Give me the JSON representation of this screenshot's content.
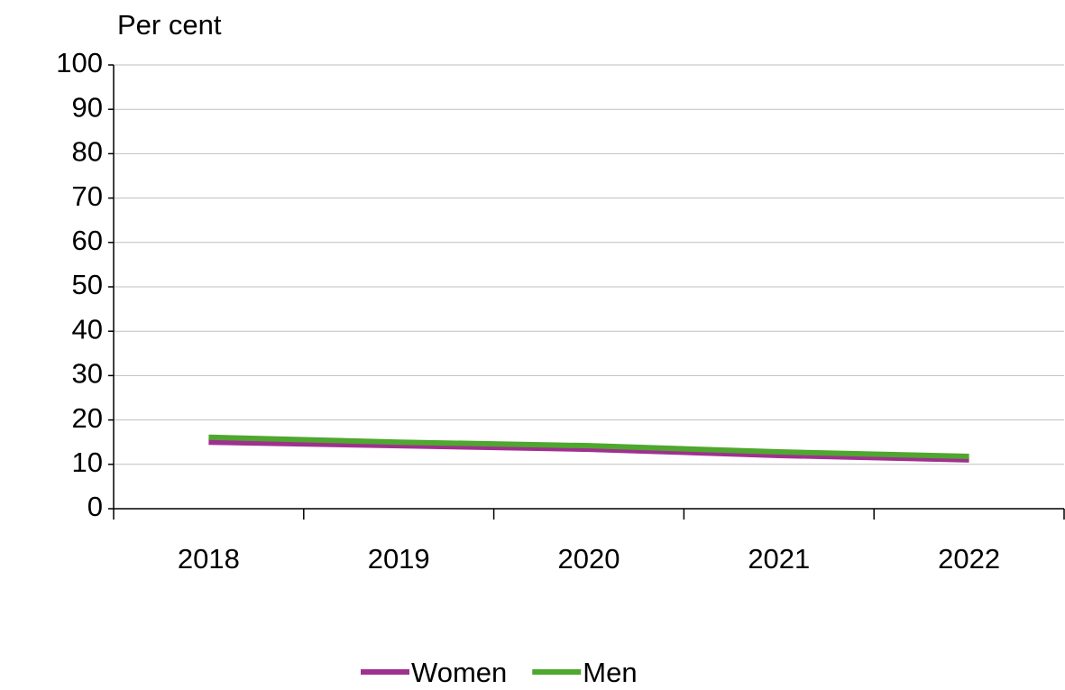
{
  "chart_data": {
    "type": "line",
    "y_axis_label": "Per cent",
    "categories": [
      "2018",
      "2019",
      "2020",
      "2021",
      "2022"
    ],
    "series": [
      {
        "name": "Women",
        "color": "#a0308f",
        "values": [
          15.0,
          14.2,
          13.4,
          12.0,
          11.0
        ]
      },
      {
        "name": "Men",
        "color": "#4ea72e",
        "values": [
          16.1,
          15.0,
          14.2,
          12.8,
          11.8
        ]
      }
    ],
    "ylim": [
      0,
      100
    ],
    "yticks": [
      0,
      10,
      20,
      30,
      40,
      50,
      60,
      70,
      80,
      90,
      100
    ],
    "grid": true,
    "legend": "bottom"
  }
}
